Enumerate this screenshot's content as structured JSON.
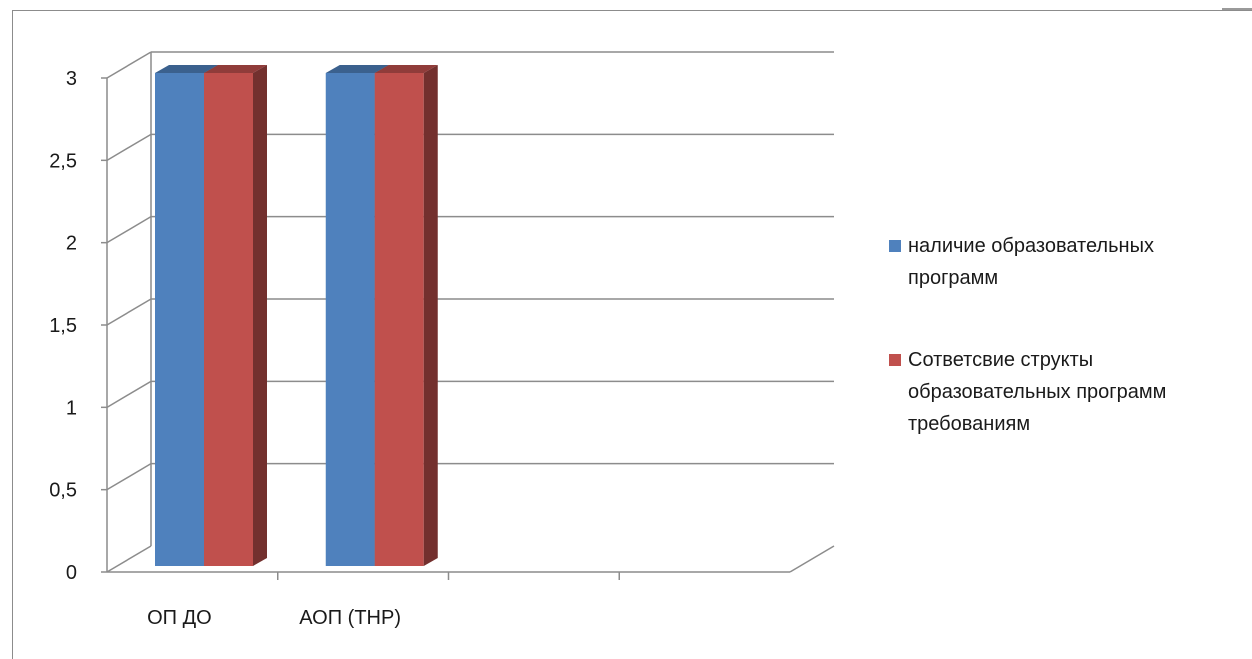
{
  "chart_data": {
    "type": "bar",
    "style": "3d-clustered-column",
    "categories": [
      "ОП  ДО",
      "АОП (ТНР)"
    ],
    "series": [
      {
        "name": "наличие образовательных программ",
        "values": [
          3,
          3
        ],
        "color": "#4F81BD"
      },
      {
        "name": "Сответсвие структы образовательных программ требованиям",
        "values": [
          3,
          3
        ],
        "color": "#C0504D"
      }
    ],
    "ylim": [
      0,
      3
    ],
    "yticks": [
      "0",
      "0,5",
      "1",
      "1,5",
      "2",
      "2,5",
      "3"
    ],
    "grid": true,
    "legend": "right",
    "title": "",
    "xlabel": "",
    "ylabel": ""
  }
}
